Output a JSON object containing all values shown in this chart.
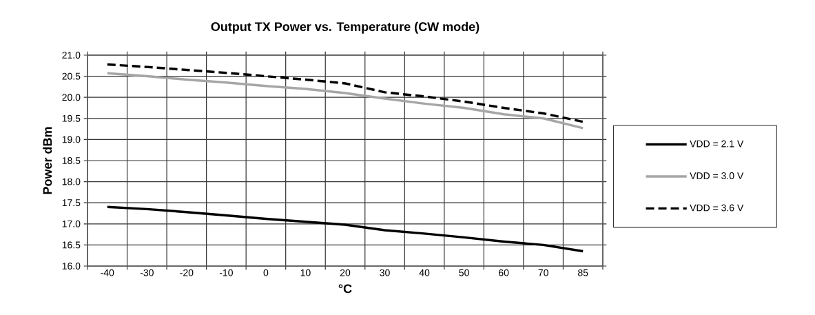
{
  "chart_data": {
    "type": "line",
    "title": "Output TX Power vs. Temperature (CW mode)",
    "xlabel": "°C",
    "ylabel": "Power dBm",
    "categories": [
      "-40",
      "-30",
      "-20",
      "-10",
      "0",
      "10",
      "20",
      "30",
      "40",
      "50",
      "60",
      "70",
      "85"
    ],
    "ylim": [
      16.0,
      21.0
    ],
    "yticks": [
      {
        "value": 16.0,
        "label": "16.0"
      },
      {
        "value": 16.5,
        "label": "16.5"
      },
      {
        "value": 17.0,
        "label": "17.0"
      },
      {
        "value": 17.5,
        "label": "17.5"
      },
      {
        "value": 18.0,
        "label": "18.0"
      },
      {
        "value": 18.5,
        "label": "18.5"
      },
      {
        "value": 19.0,
        "label": "19.0"
      },
      {
        "value": 19.5,
        "label": "19.5"
      },
      {
        "value": 20.0,
        "label": "20.0"
      },
      {
        "value": 20.5,
        "label": "20.5"
      },
      {
        "value": 21.0,
        "label": "21.0"
      }
    ],
    "grid": true,
    "legend": "right",
    "series": [
      {
        "name": "VDD = 2.1 V",
        "color": "#000000",
        "line_style": "solid",
        "values": [
          17.4,
          17.35,
          17.28,
          17.2,
          17.12,
          17.05,
          16.98,
          16.85,
          16.77,
          16.68,
          16.58,
          16.5,
          16.35
        ]
      },
      {
        "name": "VDD = 3.0 V",
        "color": "#a6a6a6",
        "line_style": "solid",
        "values": [
          20.57,
          20.5,
          20.42,
          20.35,
          20.27,
          20.2,
          20.1,
          19.97,
          19.85,
          19.75,
          19.6,
          19.5,
          19.27
        ]
      },
      {
        "name": "VDD = 3.6 V",
        "color": "#000000",
        "line_style": "dashed",
        "values": [
          20.78,
          20.72,
          20.65,
          20.58,
          20.5,
          20.42,
          20.33,
          20.12,
          20.02,
          19.9,
          19.75,
          19.62,
          19.42
        ]
      }
    ]
  }
}
